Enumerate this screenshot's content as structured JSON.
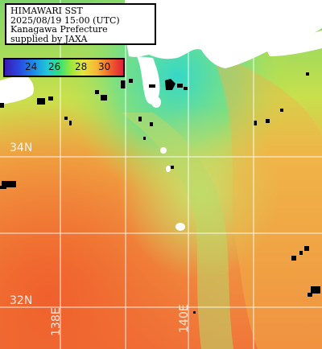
{
  "header": {
    "line1": "HIMAWARI SST",
    "line2": "2025/08/19 15:00 (UTC)",
    "line3": "Kanagawa Prefecture",
    "line4": "supplied by JAXA"
  },
  "colorbar": {
    "ticks": [
      "24",
      "26",
      "28",
      "30"
    ],
    "colors": [
      "#3a1bb5",
      "#1a8ee8",
      "#32e07a",
      "#e6e63a",
      "#f06a2a",
      "#e0213a"
    ]
  },
  "grid": {
    "lat_labels": [
      "34N",
      "32N"
    ],
    "lon_labels": [
      "138E",
      "140E"
    ]
  },
  "colors": {
    "land": "#ffffff",
    "cloud_mask": "#000000",
    "warm_sea": "#e88a3c",
    "cool_sea": "#3fd3c0",
    "gridline": "#ffffff"
  }
}
